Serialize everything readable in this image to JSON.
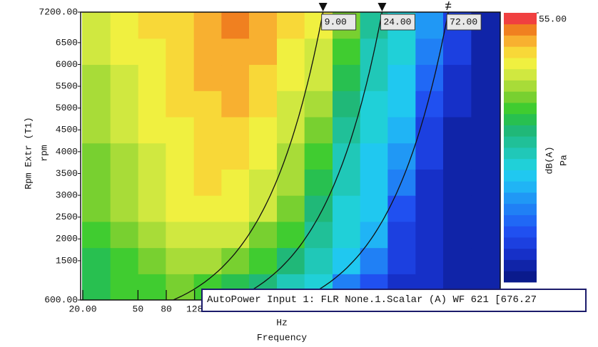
{
  "chart_data": {
    "type": "heatmap",
    "y_label": "Rpm Extr (T1)",
    "y_unit": "rpm",
    "x_unit": "Hz",
    "x_label": "Frequency",
    "x_log": true,
    "xlim": [
      19.3,
      20480
    ],
    "xticks": [
      {
        "value": 20,
        "label": "20.00"
      },
      50,
      80,
      128
    ],
    "ylim": [
      600,
      7200
    ],
    "yticks": [
      {
        "value": 7200,
        "label": "7200.00"
      },
      6500,
      6000,
      5500,
      5000,
      4500,
      4000,
      3500,
      3000,
      2500,
      2000,
      1500,
      {
        "value": 600,
        "label": "600.00"
      }
    ],
    "x": [
      25,
      40,
      63,
      100,
      160,
      250,
      400,
      630,
      1000,
      1600,
      2500,
      4000,
      6300,
      10000,
      16000
    ],
    "y": [
      900,
      1500,
      2100,
      2700,
      3300,
      3900,
      4500,
      5100,
      5700,
      6300,
      6900
    ],
    "z": [
      [
        36,
        37,
        38,
        39,
        38,
        36,
        33,
        30,
        27,
        20,
        16,
        12,
        11,
        10,
        9
      ],
      [
        36,
        38,
        40,
        42,
        41,
        40,
        37,
        33,
        29,
        25,
        20,
        13,
        11,
        10,
        9
      ],
      [
        38,
        40,
        42,
        44,
        44,
        43,
        40,
        37,
        31,
        27,
        24,
        14,
        11,
        10,
        9
      ],
      [
        39,
        41,
        43,
        45,
        46,
        45,
        43,
        39,
        34,
        28,
        25,
        15,
        11,
        10,
        9
      ],
      [
        40,
        42,
        44,
        45,
        47,
        46,
        44,
        41,
        36,
        29,
        26,
        20,
        12,
        10,
        9
      ],
      [
        40,
        42,
        44,
        46,
        47,
        47,
        45,
        42,
        38,
        30,
        26,
        22,
        13,
        10,
        9
      ],
      [
        41,
        43,
        45,
        46,
        48,
        48,
        46,
        43,
        40,
        31,
        27,
        24,
        14,
        10,
        9
      ],
      [
        42,
        44,
        45,
        47,
        48,
        49,
        47,
        44,
        41,
        33,
        28,
        25,
        16,
        11,
        9
      ],
      [
        42,
        44,
        46,
        47,
        49,
        49,
        48,
        45,
        43,
        35,
        29,
        26,
        18,
        12,
        9
      ],
      [
        43,
        45,
        46,
        48,
        49,
        50,
        49,
        46,
        44,
        37,
        30,
        27,
        20,
        13,
        10
      ],
      [
        43,
        45,
        47,
        48,
        50,
        51,
        49,
        47,
        45,
        39,
        31,
        28,
        22,
        14,
        10
      ]
    ],
    "zlim": [
      7,
      55
    ],
    "zticks": [
      {
        "value": 55,
        "label": "55.00"
      }
    ],
    "z_label": "dB(A)",
    "z_unit": "Pa",
    "colorscale": [
      "#0a1a8c",
      "#1024a8",
      "#1630c8",
      "#1c40e0",
      "#2050f0",
      "#2068f5",
      "#2080f5",
      "#2098f5",
      "#20b4f5",
      "#20c8f0",
      "#20d0d8",
      "#20c8b8",
      "#20c098",
      "#20b878",
      "#28c050",
      "#40cc30",
      "#78d030",
      "#a8dc38",
      "#d0e840",
      "#f0f040",
      "#f8d838",
      "#f8b030",
      "#f08020",
      "#f04040"
    ],
    "order_cursors": [
      {
        "value": 9,
        "label": "9.00"
      },
      {
        "value": 24,
        "label": "24.00"
      },
      {
        "value": 72,
        "label": "72.00"
      }
    ],
    "annotation": "AutoPower Input 1: FLR None.1.Scalar (A) WF 621 [676.27"
  }
}
